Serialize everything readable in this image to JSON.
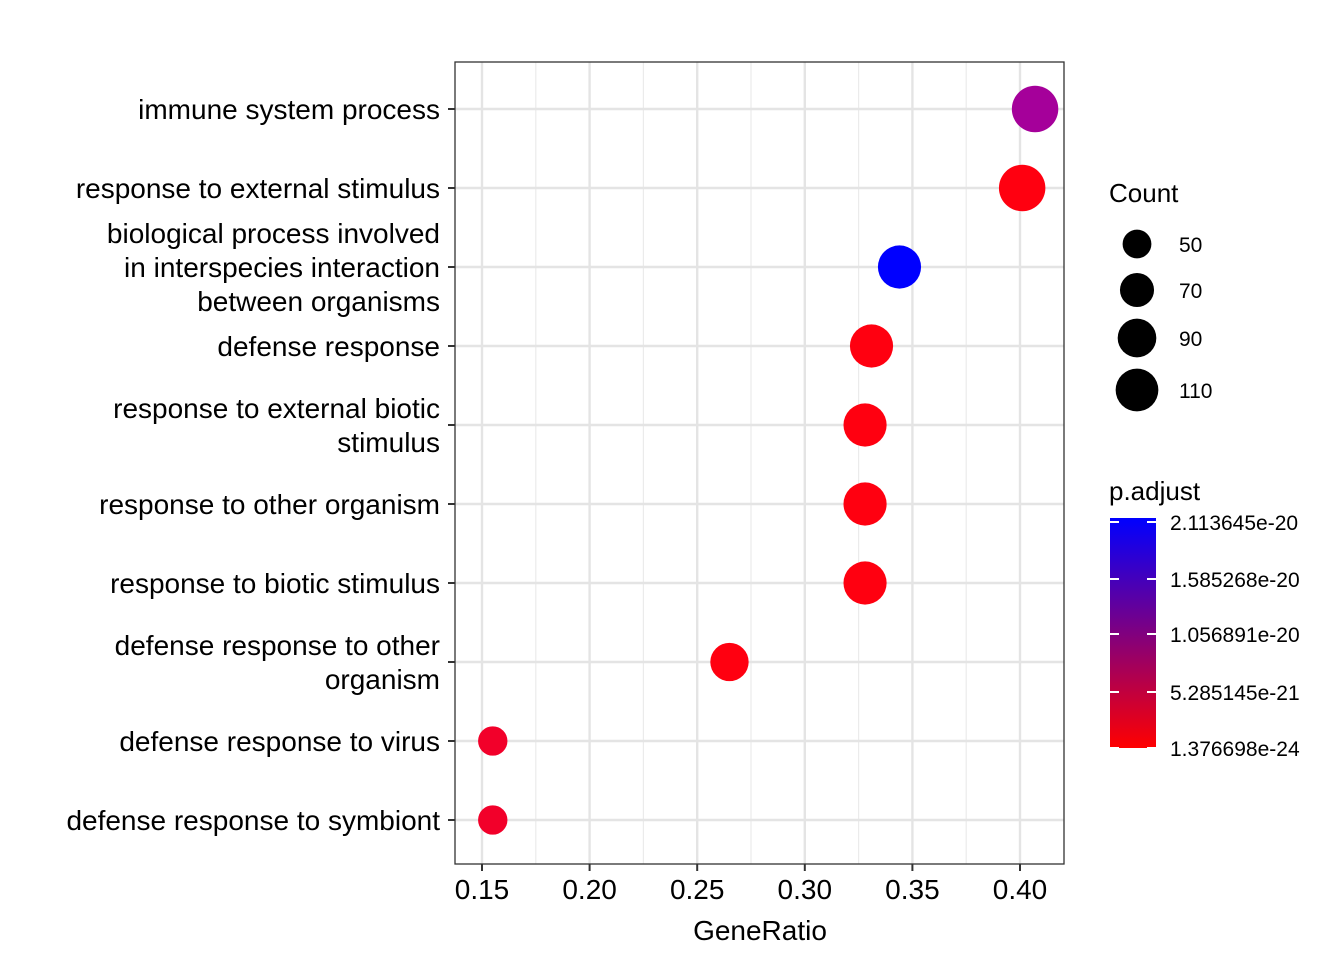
{
  "chart_data": {
    "type": "scatter",
    "xlabel": "GeneRatio",
    "ylabel": "",
    "xlim": [
      0.138,
      0.419
    ],
    "x_ticks": [
      0.15,
      0.2,
      0.25,
      0.3,
      0.35,
      0.4
    ],
    "x_tick_labels": [
      "0.15",
      "0.20",
      "0.25",
      "0.30",
      "0.35",
      "0.40"
    ],
    "grid": true,
    "legend_position": "right",
    "categories": [
      [
        "immune system process"
      ],
      [
        "response to external stimulus"
      ],
      [
        "biological process involved",
        "in interspecies interaction",
        "between organisms"
      ],
      [
        "defense response"
      ],
      [
        "response to external biotic",
        "stimulus"
      ],
      [
        "response to other organism"
      ],
      [
        "response to biotic stimulus"
      ],
      [
        "defense response to other",
        "organism"
      ],
      [
        "defense response to virus"
      ],
      [
        "defense response to symbiont"
      ]
    ],
    "points": [
      {
        "x": 0.407,
        "count": 110,
        "color": "#A5009A"
      },
      {
        "x": 0.401,
        "count": 110,
        "color": "#FF0010"
      },
      {
        "x": 0.344,
        "count": 95,
        "color": "#0000FF"
      },
      {
        "x": 0.331,
        "count": 95,
        "color": "#FF0010"
      },
      {
        "x": 0.328,
        "count": 95,
        "color": "#FF0010"
      },
      {
        "x": 0.328,
        "count": 95,
        "color": "#FF0010"
      },
      {
        "x": 0.328,
        "count": 95,
        "color": "#FF0010"
      },
      {
        "x": 0.265,
        "count": 75,
        "color": "#FF0010"
      },
      {
        "x": 0.155,
        "count": 44,
        "color": "#F2002A"
      },
      {
        "x": 0.155,
        "count": 44,
        "color": "#F2002A"
      }
    ],
    "size_legend": {
      "title": "Count",
      "values": [
        50,
        70,
        90,
        110
      ],
      "labels": [
        "50",
        "70",
        "90",
        "110"
      ]
    },
    "color_legend": {
      "title": "p.adjust",
      "labels": [
        "2.113645e-20",
        "1.585268e-20",
        "1.056891e-20",
        "5.285145e-21",
        "1.376698e-24"
      ],
      "gradient": [
        "#0000FF",
        "#FF0000"
      ]
    }
  }
}
